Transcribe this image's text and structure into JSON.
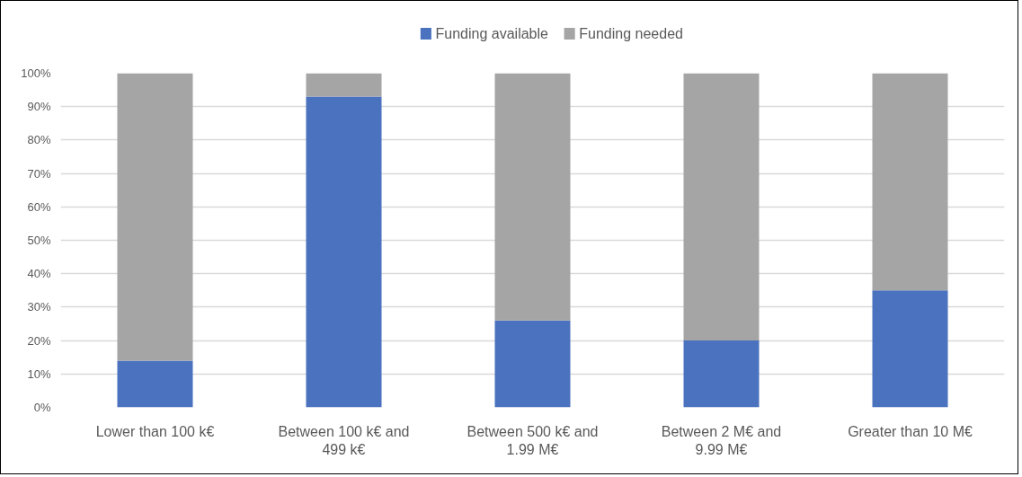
{
  "chart_data": {
    "type": "bar",
    "stacked": true,
    "categories": [
      "Lower than 100 k€",
      "Between 100 k€ and 499 k€",
      "Between 500 k€ and 1.99 M€",
      "Between 2 M€ and 9.99 M€",
      "Greater than 10 M€"
    ],
    "series": [
      {
        "name": "Funding available",
        "color": "#4a72be",
        "values": [
          14,
          93,
          26,
          20,
          35
        ]
      },
      {
        "name": "Funding needed",
        "color": "#a5a5a5",
        "values": [
          86,
          7,
          74,
          80,
          65
        ]
      }
    ],
    "ylim": [
      0,
      100
    ],
    "yticks": [
      {
        "value": 0,
        "label": "0%"
      },
      {
        "value": 10,
        "label": "10%"
      },
      {
        "value": 20,
        "label": "20%"
      },
      {
        "value": 30,
        "label": "30%"
      },
      {
        "value": 40,
        "label": "40%"
      },
      {
        "value": 50,
        "label": "50%"
      },
      {
        "value": 60,
        "label": "60%"
      },
      {
        "value": 70,
        "label": "70%"
      },
      {
        "value": 80,
        "label": "80%"
      },
      {
        "value": 90,
        "label": "90%"
      },
      {
        "value": 100,
        "label": "100%"
      }
    ],
    "grid": "y",
    "legend": "top"
  }
}
